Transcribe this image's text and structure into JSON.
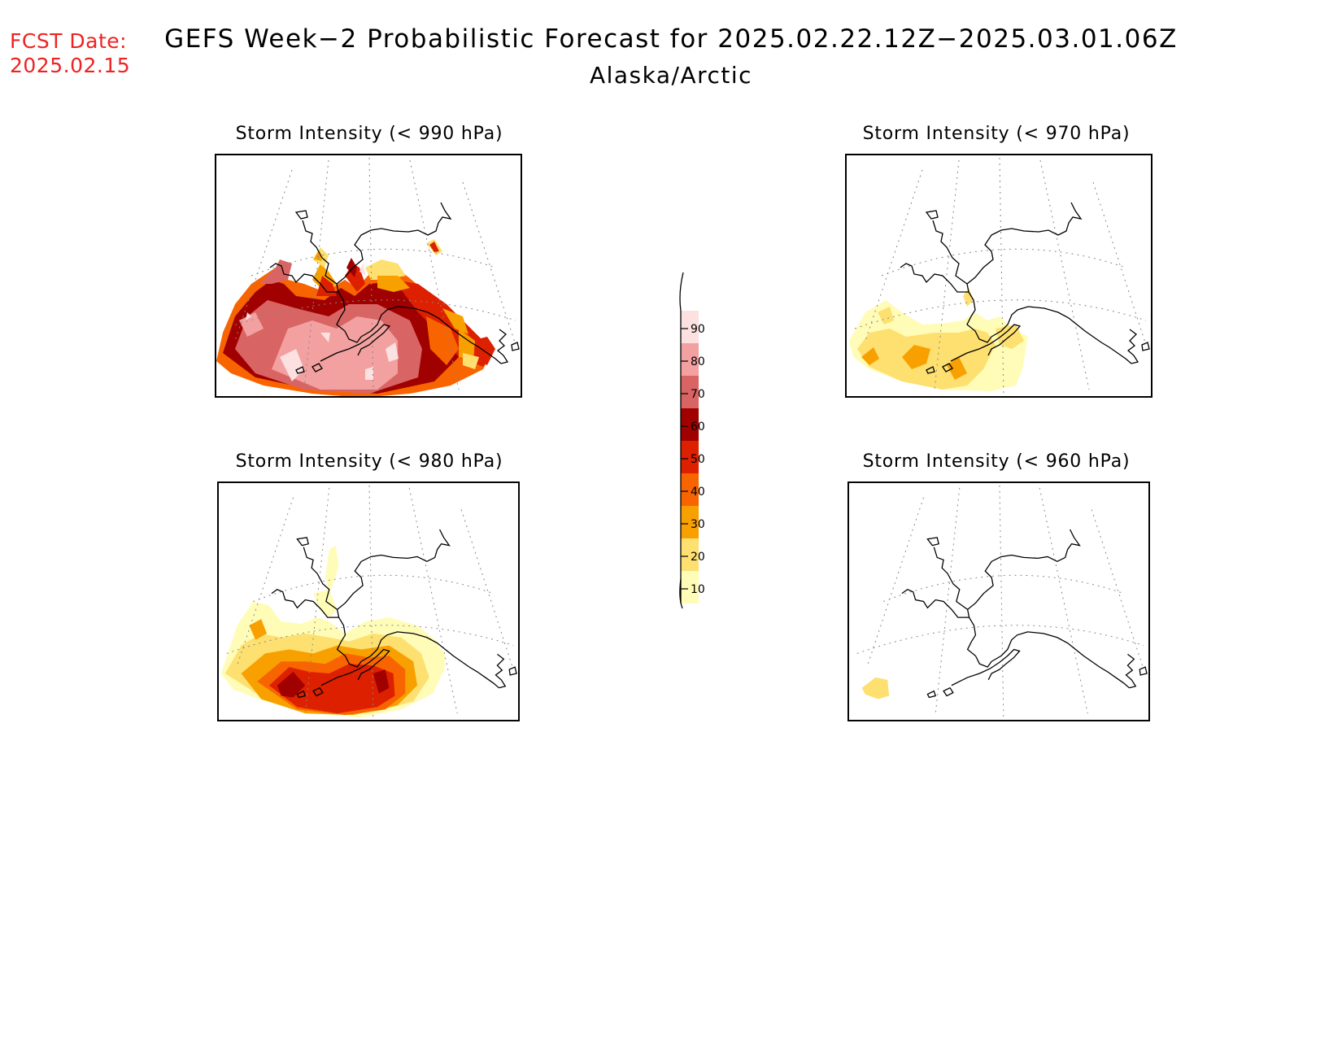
{
  "header": {
    "fcst_label": "FCST Date:",
    "fcst_date": "2025.02.15",
    "title": "GEFS Week−2 Probabilistic Forecast for 2025.02.22.12Z−2025.03.01.06Z",
    "subtitle": "Alaska/Arctic"
  },
  "panels": [
    {
      "title": "Storm Intensity (< 990 hPa)",
      "threshold_hpa": 990
    },
    {
      "title": "Storm Intensity (< 970 hPa)",
      "threshold_hpa": 970
    },
    {
      "title": "Storm Intensity (< 980 hPa)",
      "threshold_hpa": 980
    },
    {
      "title": "Storm Intensity (< 960 hPa)",
      "threshold_hpa": 960
    }
  ],
  "legend": {
    "ticks": [
      "90",
      "80",
      "70",
      "60",
      "50",
      "40",
      "30",
      "20",
      "10"
    ],
    "colors": [
      "#fde0e0",
      "#f2a0a0",
      "#d96464",
      "#a00000",
      "#dd2000",
      "#f86400",
      "#f8a000",
      "#fde070",
      "#fffcb8"
    ]
  }
}
